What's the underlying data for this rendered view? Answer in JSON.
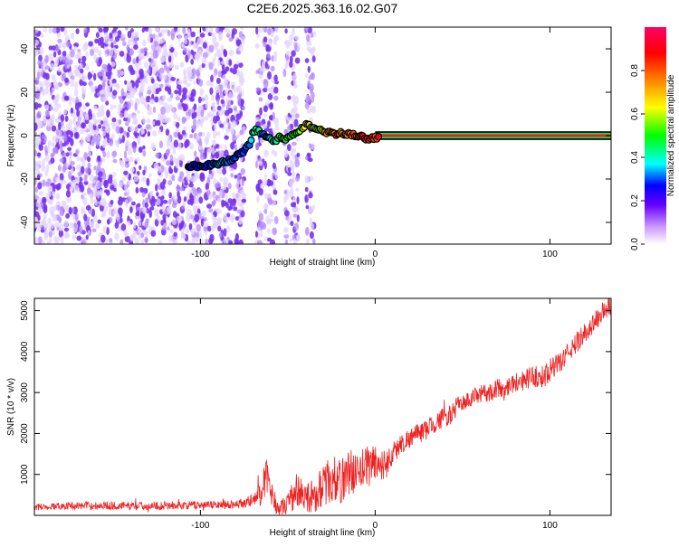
{
  "title": "C2E6.2025.363.16.02.G07",
  "chart_data": [
    {
      "type": "heatmap",
      "name": "spectrogram",
      "xlabel": "Height of straight line (km)",
      "ylabel": "Frequency (Hz)",
      "xlim": [
        -195,
        135
      ],
      "ylim": [
        -50,
        50
      ],
      "xticks": [
        -100,
        0,
        100
      ],
      "xtick_labels": [
        "-100",
        "0",
        "100"
      ],
      "yticks": [
        -40,
        -20,
        0,
        20,
        40
      ],
      "ytick_labels": [
        "-40",
        "-20",
        "0",
        "20",
        "40"
      ],
      "noise_region_km": [
        -195,
        -35
      ],
      "noise_gaps_km": [
        [
          -75,
          -68
        ],
        [
          -56,
          -52
        ],
        [
          -44,
          -40
        ]
      ],
      "signal_track": {
        "x": [
          -107,
          -100,
          -95,
          -90,
          -85,
          -80,
          -75,
          -72,
          -70,
          -68,
          -65,
          -62,
          -60,
          -58,
          -55,
          -52,
          -50,
          -48,
          -45,
          -42,
          -40,
          -38,
          -35,
          -32,
          -30,
          -28,
          -25,
          -22,
          -20,
          -15,
          -10,
          -5,
          0,
          5,
          10,
          20,
          40,
          60,
          80,
          100,
          120,
          135
        ],
        "y": [
          -14,
          -14,
          -13.5,
          -13,
          -12,
          -10,
          -7,
          -4,
          1,
          2.5,
          1,
          0,
          -2,
          -3,
          -1,
          -2,
          -1,
          0,
          1,
          3,
          4.5,
          5,
          4,
          3,
          2,
          1,
          2,
          0,
          1,
          0.5,
          0,
          -1.5,
          -1,
          0,
          0,
          0,
          0,
          0,
          0,
          0,
          0,
          0
        ],
        "amplitude": [
          0.25,
          0.3,
          0.3,
          0.35,
          0.35,
          0.3,
          0.3,
          0.35,
          0.4,
          0.5,
          0.35,
          0.3,
          0.4,
          0.45,
          0.5,
          0.55,
          0.45,
          0.5,
          0.55,
          0.6,
          0.75,
          0.7,
          0.65,
          0.6,
          0.7,
          0.75,
          0.8,
          0.85,
          0.8,
          0.85,
          0.9,
          0.95,
          0.9,
          0.95,
          0.97,
          0.97,
          0.97,
          0.97,
          0.97,
          0.97,
          0.97,
          0.97
        ]
      },
      "colorbar": {
        "label": "Normalized spectral amplitude",
        "range": [
          0,
          1
        ],
        "ticks": [
          0.0,
          0.2,
          0.4,
          0.6,
          0.8
        ],
        "tick_labels": [
          "0.0",
          "0.2",
          "0.4",
          "0.6",
          "0.8"
        ],
        "colors": [
          "#ffffff",
          "#cc99ff",
          "#6600ff",
          "#0000ff",
          "#00ffff",
          "#00ff00",
          "#ffff00",
          "#ff8800",
          "#ff0000",
          "#ff0066"
        ]
      }
    },
    {
      "type": "line",
      "name": "snr",
      "xlabel": "Height of straight line (km)",
      "ylabel": "SNR (10 * v/v)",
      "xlim": [
        -195,
        135
      ],
      "ylim": [
        0,
        5300
      ],
      "xticks": [
        -100,
        0,
        100
      ],
      "xtick_labels": [
        "-100",
        "0",
        "100"
      ],
      "yticks": [
        1000,
        2000,
        3000,
        4000,
        5000
      ],
      "ytick_labels": [
        "1000",
        "2000",
        "3000",
        "4000",
        "5000"
      ],
      "color": "#ee2222",
      "series": [
        {
          "name": "SNR",
          "x": [
            -195,
            -180,
            -160,
            -140,
            -120,
            -100,
            -90,
            -80,
            -75,
            -70,
            -65,
            -62,
            -60,
            -57,
            -55,
            -50,
            -45,
            -40,
            -35,
            -30,
            -25,
            -20,
            -15,
            -10,
            -5,
            0,
            5,
            10,
            15,
            20,
            25,
            30,
            35,
            40,
            45,
            47,
            50,
            55,
            60,
            65,
            70,
            75,
            80,
            85,
            90,
            95,
            100,
            105,
            110,
            115,
            120,
            125,
            130,
            135
          ],
          "y": [
            200,
            230,
            240,
            230,
            240,
            250,
            260,
            280,
            300,
            350,
            600,
            1000,
            600,
            250,
            150,
            300,
            600,
            400,
            500,
            700,
            900,
            800,
            1100,
            1000,
            1200,
            1300,
            1200,
            1500,
            1750,
            1900,
            2000,
            2100,
            2300,
            2400,
            2500,
            2750,
            2750,
            2850,
            2950,
            3000,
            3100,
            3150,
            3250,
            3300,
            3400,
            3350,
            3550,
            3700,
            3950,
            4200,
            4450,
            4700,
            4950,
            5150
          ],
          "noise_amplitude": [
            80,
            90,
            100,
            100,
            100,
            100,
            100,
            110,
            130,
            200,
            350,
            450,
            350,
            200,
            150,
            300,
            450,
            350,
            450,
            500,
            600,
            550,
            600,
            500,
            550,
            500,
            400,
            300,
            250,
            250,
            250,
            250,
            250,
            250,
            250,
            200,
            200,
            220,
            230,
            230,
            240,
            240,
            250,
            260,
            260,
            300,
            280,
            250,
            250,
            260,
            260,
            260,
            260,
            260
          ]
        }
      ]
    }
  ]
}
